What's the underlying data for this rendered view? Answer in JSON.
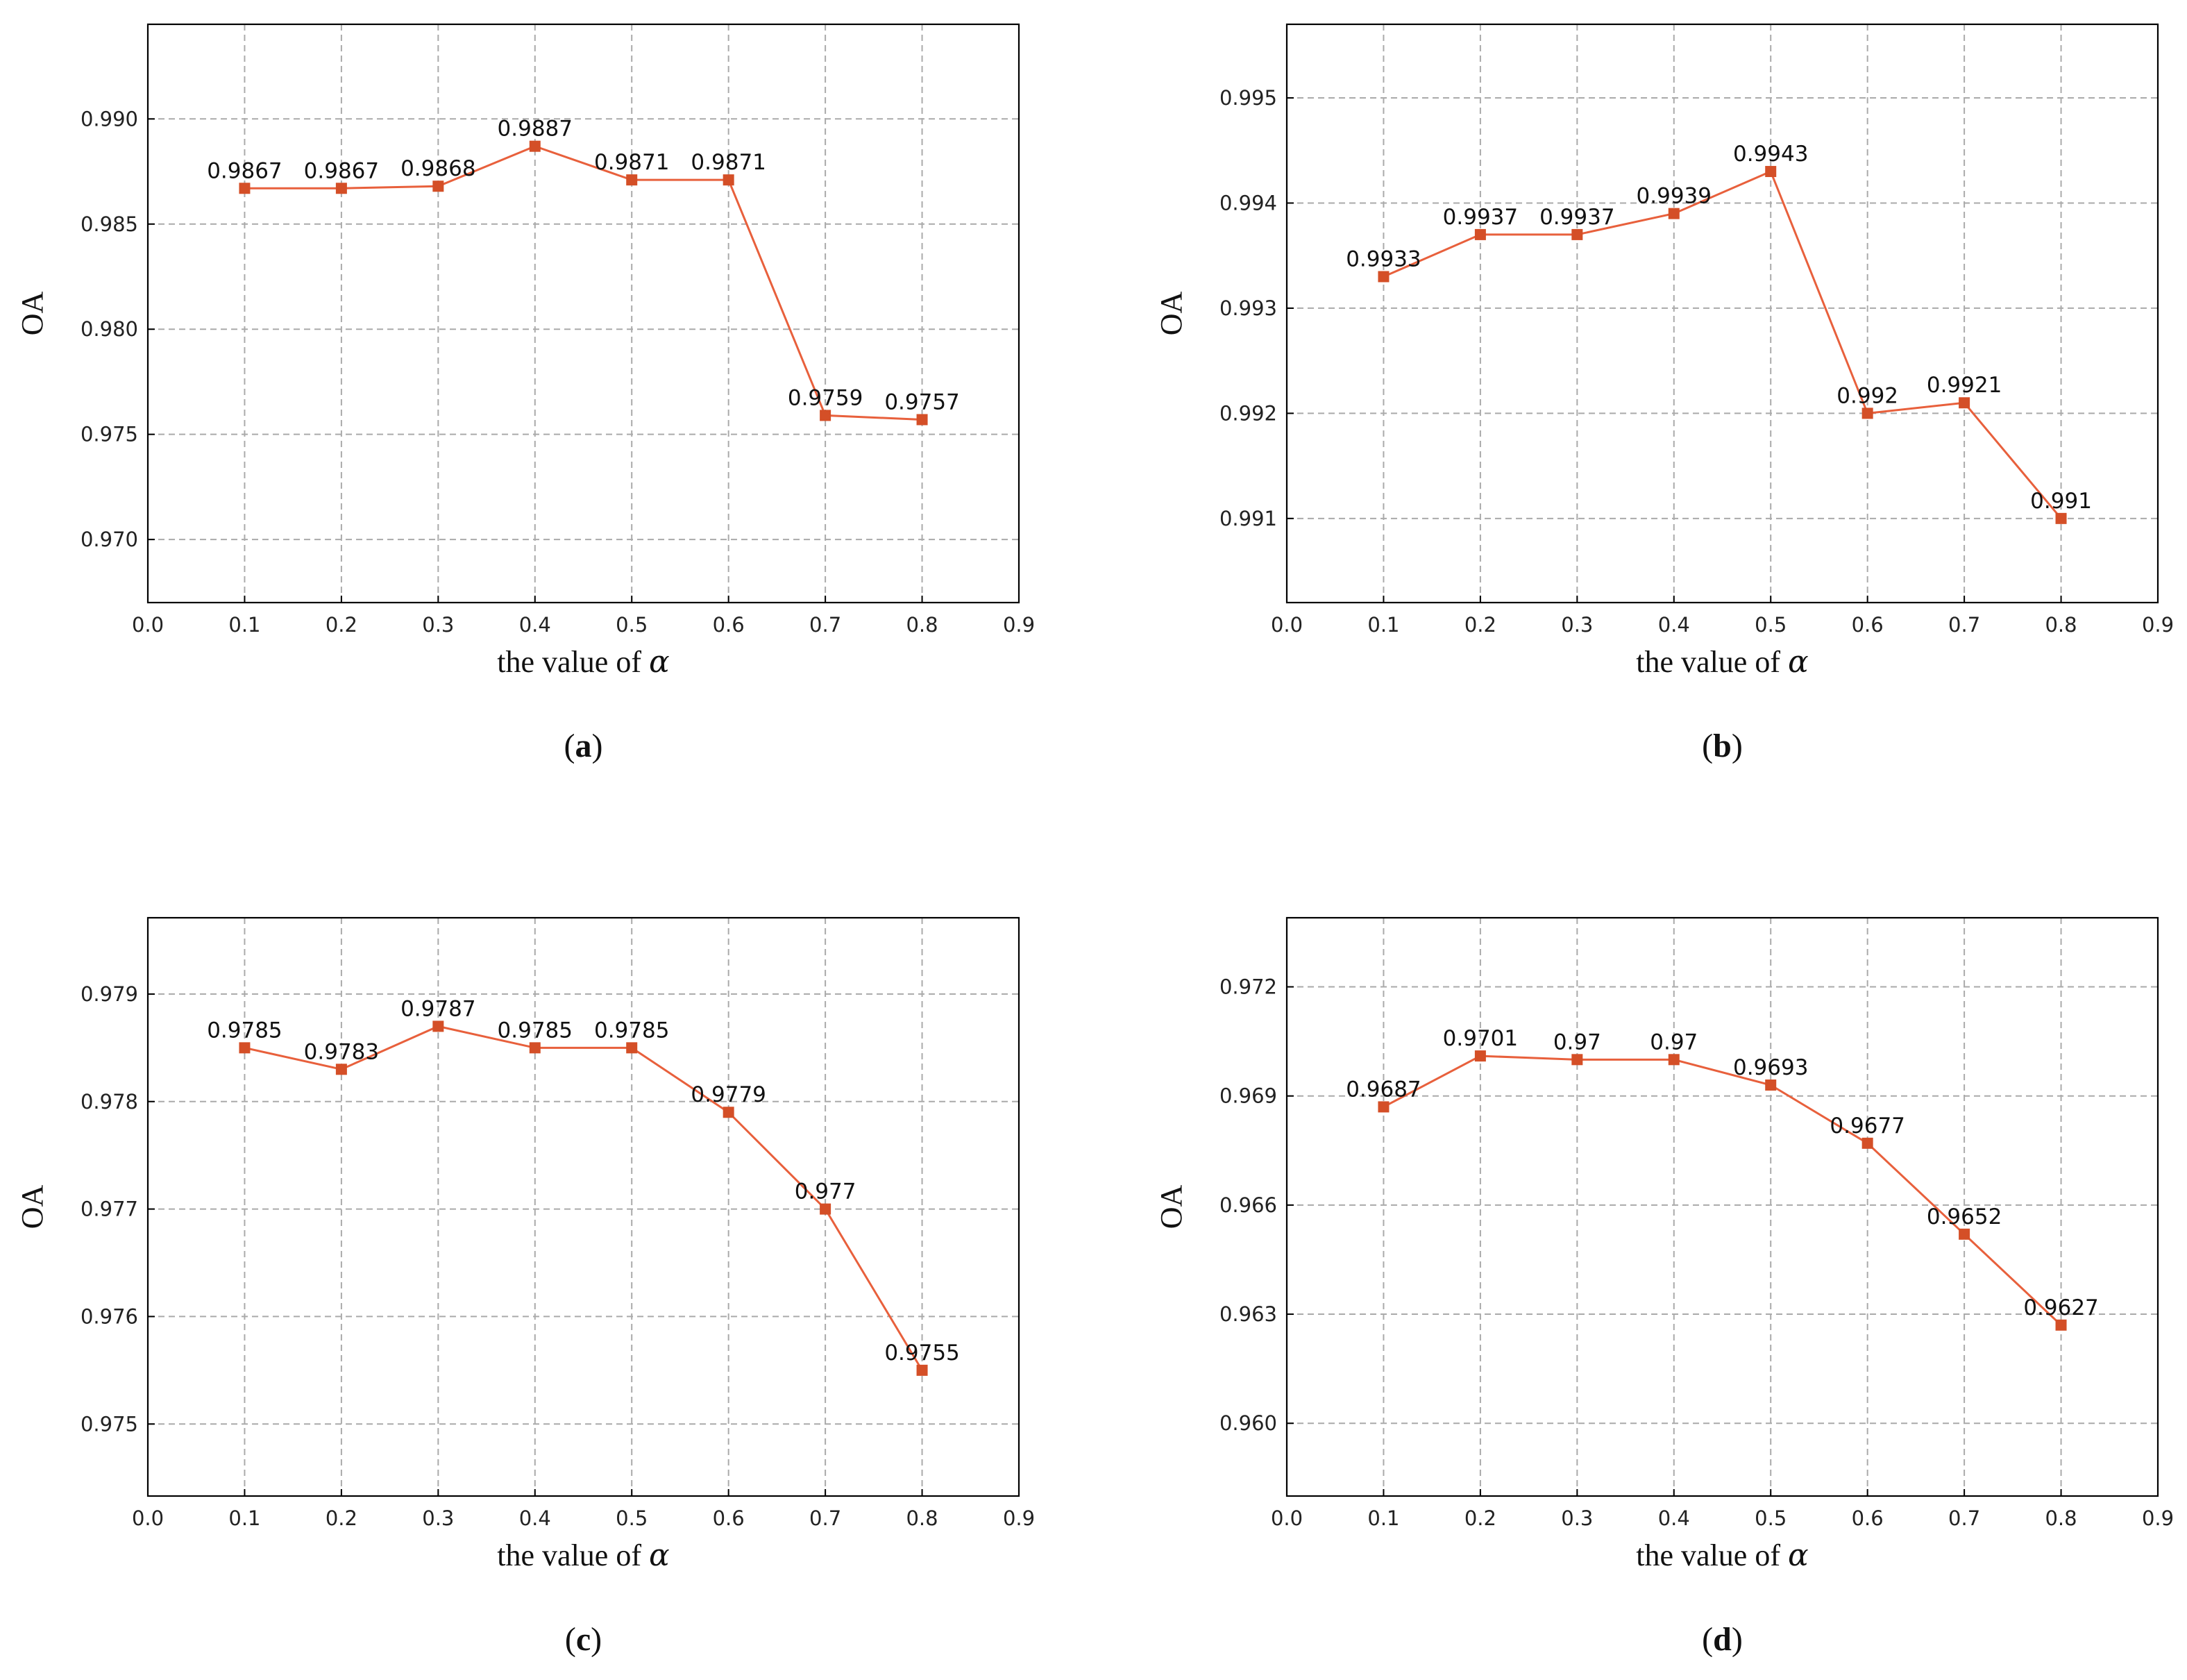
{
  "figure": {
    "series_color": "#E8603C",
    "marker_color": "#D44F27"
  },
  "chart_data": [
    {
      "id": "a",
      "type": "line",
      "caption_letter": "a",
      "xlabel_text": "the value of ",
      "xlabel_symbol": "α",
      "ylabel": "OA",
      "xlim": [
        0.0,
        0.9
      ],
      "ylim": [
        0.967,
        0.9945
      ],
      "xticks": [
        0.0,
        0.1,
        0.2,
        0.3,
        0.4,
        0.5,
        0.6,
        0.7,
        0.8,
        0.9
      ],
      "xtick_labels": [
        "0.0",
        "0.1",
        "0.2",
        "0.3",
        "0.4",
        "0.5",
        "0.6",
        "0.7",
        "0.8",
        "0.9"
      ],
      "yticks": [
        0.97,
        0.975,
        0.98,
        0.985,
        0.99
      ],
      "ytick_labels": [
        "0.970",
        "0.975",
        "0.980",
        "0.985",
        "0.990"
      ],
      "grid": true,
      "x": [
        0.1,
        0.2,
        0.3,
        0.4,
        0.5,
        0.6,
        0.7,
        0.8
      ],
      "y": [
        0.9867,
        0.9867,
        0.9868,
        0.9887,
        0.9871,
        0.9871,
        0.9759,
        0.9757
      ],
      "point_labels": [
        "0.9867",
        "0.9867",
        "0.9868",
        "0.9887",
        "0.9871",
        "0.9871",
        "0.9759",
        "0.9757"
      ]
    },
    {
      "id": "b",
      "type": "line",
      "caption_letter": "b",
      "xlabel_text": "the value of ",
      "xlabel_symbol": "α",
      "ylabel": "OA",
      "xlim": [
        0.0,
        0.9
      ],
      "ylim": [
        0.9902,
        0.9957
      ],
      "xticks": [
        0.0,
        0.1,
        0.2,
        0.3,
        0.4,
        0.5,
        0.6,
        0.7,
        0.8,
        0.9
      ],
      "xtick_labels": [
        "0.0",
        "0.1",
        "0.2",
        "0.3",
        "0.4",
        "0.5",
        "0.6",
        "0.7",
        "0.8",
        "0.9"
      ],
      "yticks": [
        0.991,
        0.992,
        0.993,
        0.994,
        0.995
      ],
      "ytick_labels": [
        "0.991",
        "0.992",
        "0.993",
        "0.994",
        "0.995"
      ],
      "grid": true,
      "x": [
        0.1,
        0.2,
        0.3,
        0.4,
        0.5,
        0.6,
        0.7,
        0.8
      ],
      "y": [
        0.9933,
        0.9937,
        0.9937,
        0.9939,
        0.9943,
        0.992,
        0.9921,
        0.991
      ],
      "point_labels": [
        "0.9933",
        "0.9937",
        "0.9937",
        "0.9939",
        "0.9943",
        "0.992",
        "0.9921",
        "0.991"
      ]
    },
    {
      "id": "c",
      "type": "line",
      "caption_letter": "c",
      "xlabel_text": "the value of ",
      "xlabel_symbol": "α",
      "ylabel": "OA",
      "xlim": [
        0.0,
        0.9
      ],
      "ylim": [
        0.97433,
        0.97971
      ],
      "xticks": [
        0.0,
        0.1,
        0.2,
        0.3,
        0.4,
        0.5,
        0.6,
        0.7,
        0.8,
        0.9
      ],
      "xtick_labels": [
        "0.0",
        "0.1",
        "0.2",
        "0.3",
        "0.4",
        "0.5",
        "0.6",
        "0.7",
        "0.8",
        "0.9"
      ],
      "yticks": [
        0.975,
        0.976,
        0.977,
        0.978,
        0.979
      ],
      "ytick_labels": [
        "0.975",
        "0.976",
        "0.977",
        "0.978",
        "0.979"
      ],
      "grid": true,
      "x": [
        0.1,
        0.2,
        0.3,
        0.4,
        0.5,
        0.6,
        0.7,
        0.8
      ],
      "y": [
        0.9785,
        0.9783,
        0.9787,
        0.9785,
        0.9785,
        0.9779,
        0.977,
        0.9755
      ],
      "point_labels": [
        "0.9785",
        "0.9783",
        "0.9787",
        "0.9785",
        "0.9785",
        "0.9779",
        "0.977",
        "0.9755"
      ]
    },
    {
      "id": "d",
      "type": "line",
      "caption_letter": "d",
      "xlabel_text": "the value of ",
      "xlabel_symbol": "α",
      "ylabel": "OA",
      "xlim": [
        0.0,
        0.9
      ],
      "ylim": [
        0.958,
        0.9739
      ],
      "xticks": [
        0.0,
        0.1,
        0.2,
        0.3,
        0.4,
        0.5,
        0.6,
        0.7,
        0.8,
        0.9
      ],
      "xtick_labels": [
        "0.0",
        "0.1",
        "0.2",
        "0.3",
        "0.4",
        "0.5",
        "0.6",
        "0.7",
        "0.8",
        "0.9"
      ],
      "yticks": [
        0.96,
        0.963,
        0.966,
        0.969,
        0.972
      ],
      "ytick_labels": [
        "0.960",
        "0.963",
        "0.966",
        "0.969",
        "0.972"
      ],
      "grid": true,
      "x": [
        0.1,
        0.2,
        0.3,
        0.4,
        0.5,
        0.6,
        0.7,
        0.8
      ],
      "y": [
        0.9687,
        0.9701,
        0.97,
        0.97,
        0.9693,
        0.9677,
        0.9652,
        0.9627
      ],
      "point_labels": [
        "0.9687",
        "0.9701",
        "0.97",
        "0.97",
        "0.9693",
        "0.9677",
        "0.9652",
        "0.9627"
      ]
    }
  ]
}
